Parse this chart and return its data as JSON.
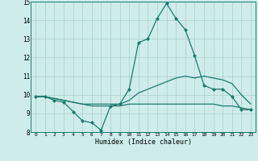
{
  "xlabel": "Humidex (Indice chaleur)",
  "x": [
    0,
    1,
    2,
    3,
    4,
    5,
    6,
    7,
    8,
    9,
    10,
    11,
    12,
    13,
    14,
    15,
    16,
    17,
    18,
    19,
    20,
    21,
    22,
    23
  ],
  "line1": [
    9.9,
    9.9,
    9.7,
    9.6,
    9.1,
    8.6,
    8.5,
    8.1,
    9.4,
    9.5,
    10.3,
    12.8,
    13.0,
    14.1,
    14.9,
    14.1,
    13.5,
    12.1,
    10.5,
    10.3,
    10.3,
    9.9,
    9.2,
    9.2
  ],
  "line2": [
    9.9,
    9.9,
    9.8,
    9.7,
    9.6,
    9.5,
    9.5,
    9.5,
    9.5,
    9.5,
    9.7,
    10.1,
    10.3,
    10.5,
    10.7,
    10.9,
    11.0,
    10.9,
    11.0,
    10.9,
    10.8,
    10.6,
    10.0,
    9.5
  ],
  "line3": [
    9.9,
    9.9,
    9.8,
    9.7,
    9.6,
    9.5,
    9.4,
    9.4,
    9.4,
    9.4,
    9.5,
    9.5,
    9.5,
    9.5,
    9.5,
    9.5,
    9.5,
    9.5,
    9.5,
    9.5,
    9.4,
    9.4,
    9.3,
    9.2
  ],
  "xlim": [
    -0.5,
    23.5
  ],
  "ylim": [
    8,
    15
  ],
  "yticks": [
    8,
    9,
    10,
    11,
    12,
    13,
    14,
    15
  ],
  "xticks": [
    0,
    1,
    2,
    3,
    4,
    5,
    6,
    7,
    8,
    9,
    10,
    11,
    12,
    13,
    14,
    15,
    16,
    17,
    18,
    19,
    20,
    21,
    22,
    23
  ],
  "line_color": "#1a7a6e",
  "bg_color": "#ceecea",
  "grid_color": "#aacfcc"
}
